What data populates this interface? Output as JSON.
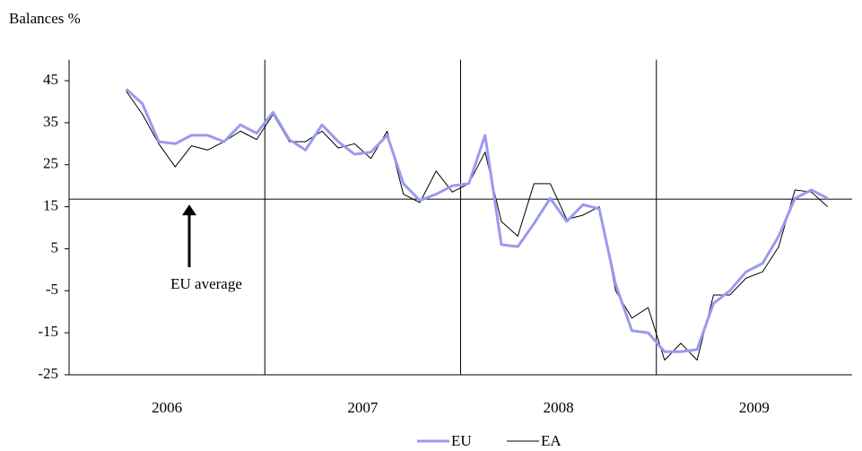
{
  "chart_data": {
    "type": "line",
    "y_label": "Balances %",
    "x": [
      2006.292,
      2006.375,
      2006.458,
      2006.542,
      2006.625,
      2006.708,
      2006.792,
      2006.875,
      2006.958,
      2007.042,
      2007.125,
      2007.208,
      2007.292,
      2007.375,
      2007.458,
      2007.542,
      2007.625,
      2007.708,
      2007.792,
      2007.875,
      2007.958,
      2008.042,
      2008.125,
      2008.208,
      2008.292,
      2008.375,
      2008.458,
      2008.542,
      2008.625,
      2008.708,
      2008.792,
      2008.875,
      2008.958,
      2009.042,
      2009.125,
      2009.208,
      2009.292,
      2009.375,
      2009.458,
      2009.542,
      2009.625,
      2009.708,
      2009.792,
      2009.875
    ],
    "series": [
      {
        "name": "EU",
        "color": "#9a9af0",
        "width": 3,
        "values": [
          43,
          39.5,
          30.5,
          30,
          32,
          32,
          30.5,
          34.5,
          32.5,
          37.5,
          31,
          28.5,
          34.5,
          30.5,
          27.5,
          28,
          32,
          20.5,
          16.5,
          18,
          20,
          20.5,
          32,
          6,
          5.5,
          11,
          17,
          11.5,
          15.5,
          14.5,
          -3.5,
          -14.5,
          -15,
          -19.5,
          -19.5,
          -19,
          -8,
          -5,
          -0.5,
          1.5,
          8,
          17,
          19,
          17
        ]
      },
      {
        "name": "EA",
        "color": "#000000",
        "width": 1,
        "values": [
          42.5,
          37,
          30,
          24.5,
          29.5,
          28.5,
          30.5,
          33,
          31,
          37,
          30.5,
          30.5,
          33,
          29,
          30,
          26.5,
          33,
          18,
          16,
          23.5,
          18.5,
          20.5,
          28,
          11.5,
          8,
          20.5,
          20.5,
          12,
          13,
          15,
          -5,
          -11.5,
          -9,
          -21.5,
          -17.5,
          -21.5,
          -6,
          -6,
          -2,
          -0.5,
          5.5,
          19,
          18.5,
          15
        ]
      }
    ],
    "xlim": [
      2006,
      2010
    ],
    "xticks": [
      2007,
      2008,
      2009
    ],
    "year_labels": [
      "2006",
      "2007",
      "2008",
      "2009"
    ],
    "ylim": [
      -25,
      50
    ],
    "yticks": [
      -25,
      -15,
      -5,
      5,
      15,
      25,
      35,
      45
    ],
    "reference_line": {
      "label": "EU average",
      "value": 16.8
    }
  }
}
